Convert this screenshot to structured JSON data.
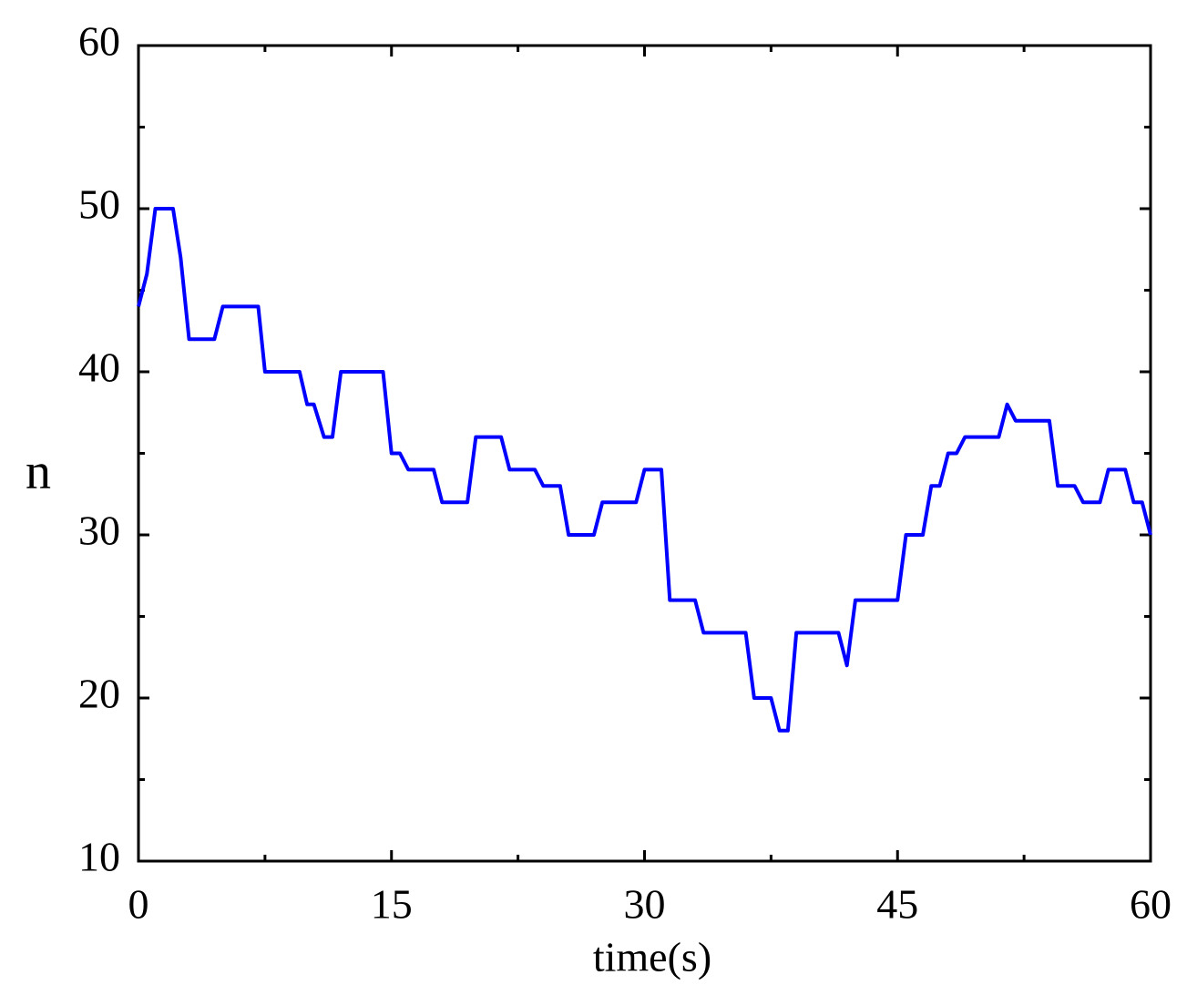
{
  "chart_data": {
    "type": "line",
    "xlabel": "time(s)",
    "ylabel": "n",
    "x": [
      0,
      0.5,
      1.0,
      2.05,
      2.5,
      3.0,
      4.5,
      5.0,
      7.1,
      7.5,
      9.55,
      10.0,
      10.4,
      11.0,
      11.5,
      12.0,
      14.5,
      15.0,
      15.5,
      16.0,
      17.5,
      18.0,
      19.5,
      20.0,
      21.5,
      22.0,
      23.5,
      24.0,
      25.0,
      25.5,
      27.0,
      27.5,
      29.5,
      30.0,
      31.0,
      31.5,
      33.0,
      33.5,
      36.0,
      36.5,
      37.5,
      38.0,
      38.5,
      39.0,
      41.5,
      42.0,
      42.5,
      45.0,
      45.5,
      46.5,
      47.0,
      47.5,
      48.0,
      48.5,
      49.0,
      51.0,
      51.5,
      52.0,
      54.0,
      54.5,
      55.5,
      56.0,
      57.0,
      57.5,
      58.5,
      59.0,
      59.5,
      60
    ],
    "series": [
      {
        "name": "n",
        "color": "#0000ff",
        "values": [
          44,
          46,
          50,
          50,
          47,
          42,
          42,
          44,
          44,
          40,
          40,
          38,
          38,
          36,
          36,
          40,
          40,
          35,
          35,
          34,
          34,
          32,
          32,
          36,
          36,
          34,
          34,
          33,
          33,
          30,
          30,
          32,
          32,
          34,
          34,
          26,
          26,
          24,
          24,
          20,
          20,
          18,
          18,
          24,
          24,
          22,
          26,
          26,
          30,
          30,
          33,
          33,
          35,
          35,
          36,
          36,
          38,
          37,
          37,
          33,
          33,
          32,
          32,
          34,
          34,
          32,
          32,
          30
        ]
      }
    ],
    "xlim": [
      0,
      60
    ],
    "xticks": [
      0,
      15,
      30,
      45,
      60
    ],
    "x_minor_ticks": [
      7.5,
      22.5,
      37.5,
      52.5
    ],
    "ylim": [
      10,
      60
    ],
    "yticks": [
      10,
      20,
      30,
      40,
      50,
      60
    ],
    "y_minor_ticks": [
      15,
      25,
      35,
      45,
      55
    ],
    "grid": false
  }
}
